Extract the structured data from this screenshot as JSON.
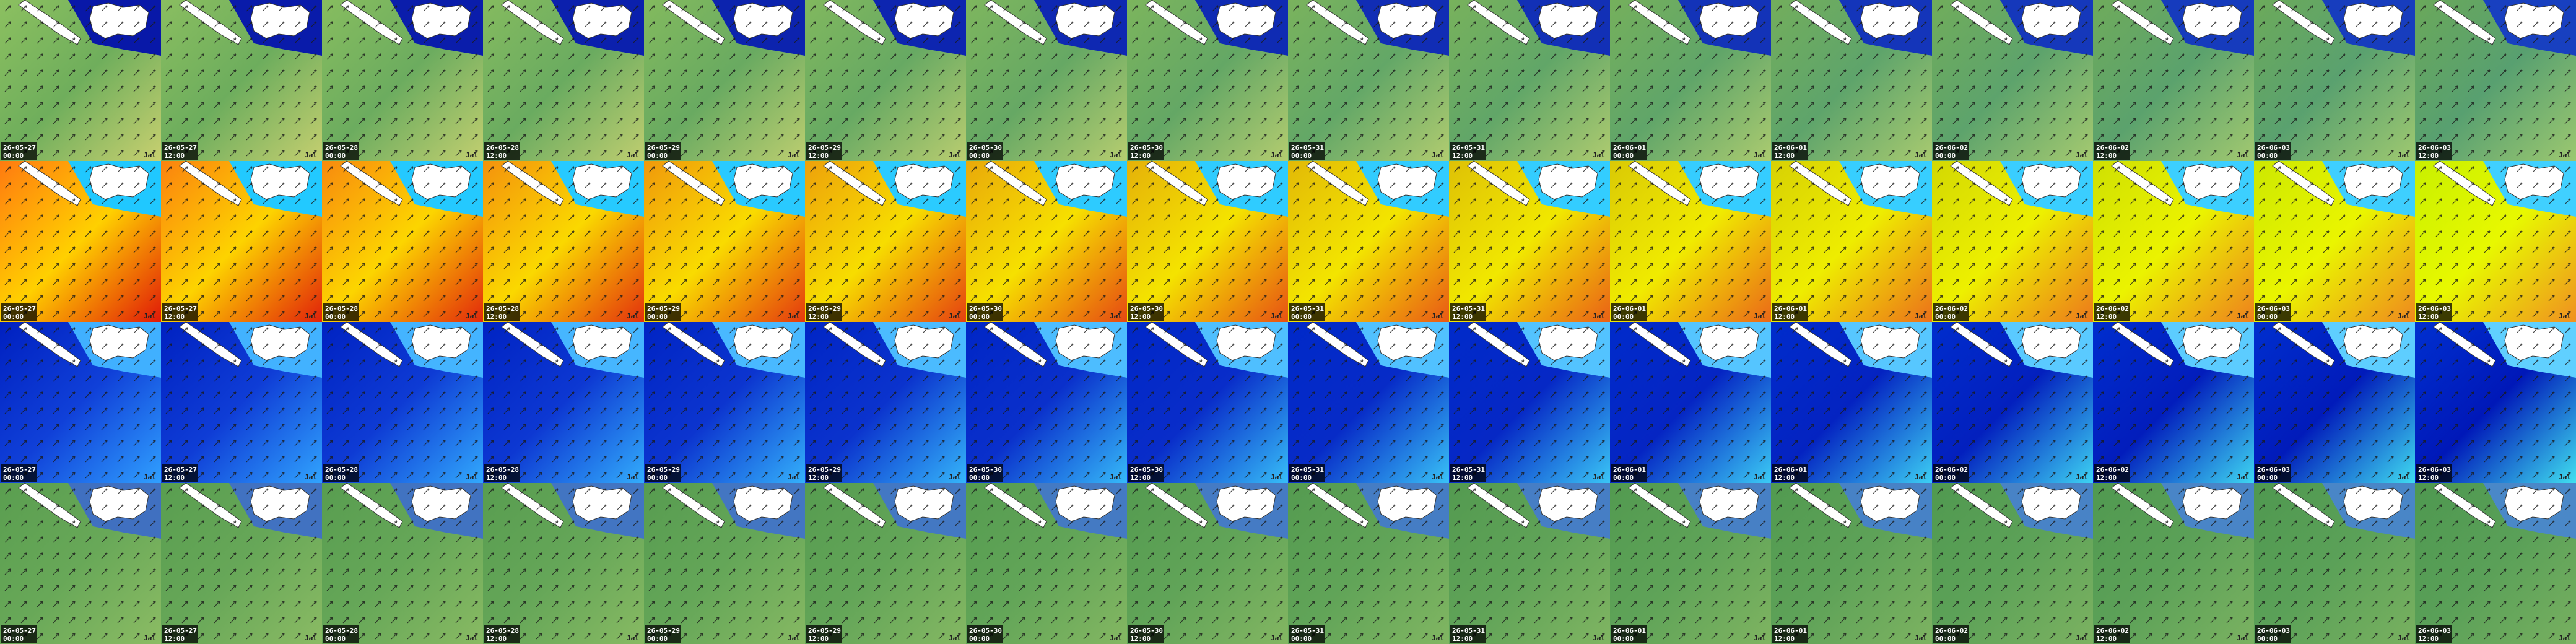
{
  "columns": [
    {
      "date": "26-05-27",
      "time": "00:00"
    },
    {
      "date": "26-05-27",
      "time": "12:00"
    },
    {
      "date": "26-05-28",
      "time": "00:00"
    },
    {
      "date": "26-05-28",
      "time": "12:00"
    },
    {
      "date": "26-05-29",
      "time": "00:00"
    },
    {
      "date": "26-05-29",
      "time": "12:00"
    },
    {
      "date": "26-05-30",
      "time": "00:00"
    },
    {
      "date": "26-05-30",
      "time": "12:00"
    },
    {
      "date": "26-05-31",
      "time": "00:00"
    },
    {
      "date": "26-05-31",
      "time": "12:00"
    },
    {
      "date": "26-06-01",
      "time": "00:00"
    },
    {
      "date": "26-06-01",
      "time": "12:00"
    },
    {
      "date": "26-06-02",
      "time": "00:00"
    },
    {
      "date": "26-06-02",
      "time": "12:00"
    },
    {
      "date": "26-06-03",
      "time": "00:00"
    },
    {
      "date": "26-06-03",
      "time": "12:00"
    }
  ],
  "watermark": "Jal"
}
